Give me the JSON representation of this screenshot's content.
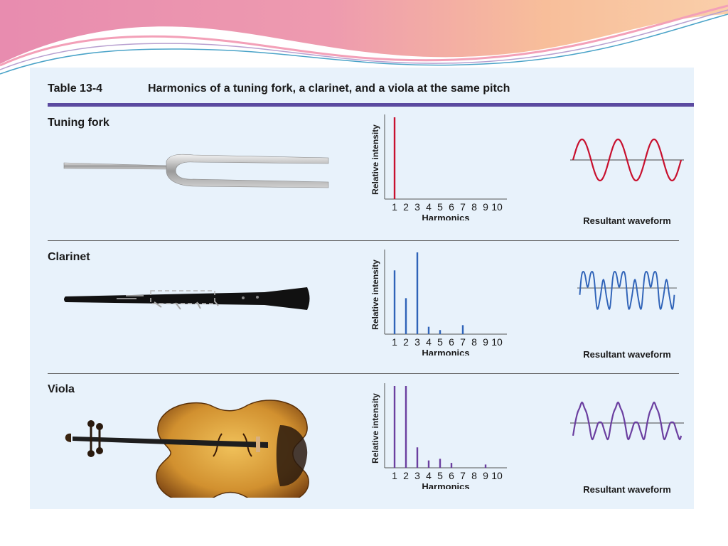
{
  "table": {
    "number": "Table 13-4",
    "title": "Harmonics of a tuning fork, a clarinet, and a viola at the same pitch"
  },
  "colors": {
    "banner_pink": "#e57fa6",
    "banner_peach": "#f7b78f",
    "panel": "#e8f2fb",
    "rule": "#5b4aa0",
    "tuning_fork": "#c8102e",
    "clarinet": "#2f63b8",
    "viola": "#6b3fa0"
  },
  "wave_caption": "Resultant waveform",
  "instruments": [
    {
      "name": "Tuning fork",
      "icon": "tuning-fork-icon"
    },
    {
      "name": "Clarinet",
      "icon": "clarinet-icon"
    },
    {
      "name": "Viola",
      "icon": "viola-icon"
    }
  ],
  "chart_data": [
    {
      "type": "bar",
      "instrument": "Tuning fork",
      "categories": [
        "1",
        "2",
        "3",
        "4",
        "5",
        "6",
        "7",
        "8",
        "9",
        "10"
      ],
      "values": [
        1.0,
        0,
        0,
        0,
        0,
        0,
        0,
        0,
        0,
        0
      ],
      "xlabel": "Harmonics",
      "ylabel": "Relative intensity",
      "ylim": [
        0,
        1
      ],
      "color": "#c8102e"
    },
    {
      "type": "bar",
      "instrument": "Clarinet",
      "categories": [
        "1",
        "2",
        "3",
        "4",
        "5",
        "6",
        "7",
        "8",
        "9",
        "10"
      ],
      "values": [
        0.78,
        0.44,
        1.0,
        0.09,
        0.05,
        0,
        0.11,
        0,
        0,
        0
      ],
      "xlabel": "Harmonics",
      "ylabel": "Relative intensity",
      "ylim": [
        0,
        1
      ],
      "color": "#2f63b8"
    },
    {
      "type": "bar",
      "instrument": "Viola",
      "categories": [
        "1",
        "2",
        "3",
        "4",
        "5",
        "6",
        "7",
        "8",
        "9",
        "10"
      ],
      "values": [
        1.0,
        1.0,
        0.25,
        0.09,
        0.11,
        0.06,
        0,
        0,
        0.04,
        0
      ],
      "xlabel": "Harmonics",
      "ylabel": "Relative intensity",
      "ylim": [
        0,
        1
      ],
      "color": "#6b3fa0"
    }
  ]
}
